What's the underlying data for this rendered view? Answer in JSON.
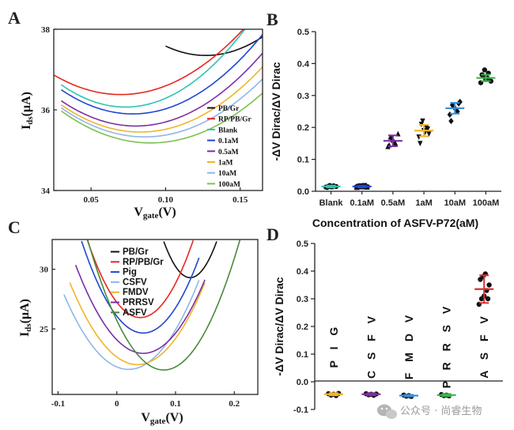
{
  "panels": {
    "a": "A",
    "b": "B",
    "c": "C",
    "d": "D"
  },
  "watermark": {
    "text": "公众号 · 尚睿生物",
    "icon": "wechat-icon"
  },
  "colors": {
    "ASFV": "#d93030"
  },
  "chart_data": [
    {
      "id": "A",
      "type": "line",
      "ylabel_main": "I",
      "ylabel_sub": "ds",
      "ylabel_rest": "(μA)",
      "xlabel_main": "V",
      "xlabel_sub": "gate",
      "xlabel_rest": "(V)",
      "xlim": [
        0.025,
        0.165
      ],
      "ylim": [
        34,
        38
      ],
      "xticks": [
        "0.05",
        "0.10",
        "0.15"
      ],
      "xtick_values": [
        0.05,
        0.1,
        0.15
      ],
      "yticks": [
        "34",
        "36",
        "38"
      ],
      "ytick_values": [
        34,
        36,
        38
      ],
      "series": [
        {
          "name": "PB/Gr",
          "color": "#111111",
          "min_x": 0.127,
          "min_y": 37.35,
          "curv": 320,
          "xrange": [
            0.1,
            0.165
          ]
        },
        {
          "name": "RP/PB/Gr",
          "color": "#e8261f",
          "min_x": 0.07,
          "min_y": 36.38,
          "curv": 240,
          "xrange": [
            0.025,
            0.165
          ]
        },
        {
          "name": "Blank",
          "color": "#2ec4b0",
          "min_x": 0.073,
          "min_y": 36.07,
          "curv": 300,
          "xrange": [
            0.03,
            0.165
          ]
        },
        {
          "name": "0.1aM",
          "color": "#2146d0",
          "min_x": 0.078,
          "min_y": 35.9,
          "curv": 260,
          "xrange": [
            0.03,
            0.165
          ]
        },
        {
          "name": "0.5aM",
          "color": "#7b2fa5",
          "min_x": 0.08,
          "min_y": 35.6,
          "curv": 250,
          "xrange": [
            0.03,
            0.165
          ]
        },
        {
          "name": "1aM",
          "color": "#f0b429",
          "min_x": 0.083,
          "min_y": 35.45,
          "curv": 240,
          "xrange": [
            0.03,
            0.165
          ]
        },
        {
          "name": "10aM",
          "color": "#8fb6e8",
          "min_x": 0.086,
          "min_y": 35.33,
          "curv": 230,
          "xrange": [
            0.03,
            0.165
          ]
        },
        {
          "name": "100aM",
          "color": "#7cc14f",
          "min_x": 0.09,
          "min_y": 35.18,
          "curv": 220,
          "xrange": [
            0.03,
            0.165
          ]
        }
      ]
    },
    {
      "id": "B",
      "type": "scatter",
      "ylabel": "-ΔV Dirac/ΔV Dirac",
      "xlabel": "Concentration of ASFV-P72(aM)",
      "ylim": [
        0,
        0.5
      ],
      "yticks": [
        "0.0",
        "0.1",
        "0.2",
        "0.3",
        "0.4",
        "0.5"
      ],
      "ytick_values": [
        0,
        0.1,
        0.2,
        0.3,
        0.4,
        0.5
      ],
      "categories": [
        "Blank",
        "0.1aM",
        "0.5aM",
        "1aM",
        "10aM",
        "100aM"
      ],
      "colors": [
        "#2ec4b0",
        "#2146d0",
        "#7b2fa5",
        "#f0b429",
        "#3a8fd8",
        "#39b54a"
      ],
      "marker_shapes": [
        "circle",
        "square",
        "triangle",
        "invtriangle",
        "diamond",
        "circle"
      ],
      "means": [
        0.015,
        0.015,
        0.158,
        0.19,
        0.26,
        0.355
      ],
      "sds": [
        0.003,
        0.003,
        0.017,
        0.018,
        0.017,
        0.01
      ],
      "points": [
        [
          0.013,
          0.016,
          0.014,
          0.017,
          0.015,
          0.012,
          0.018,
          0.014
        ],
        [
          0.012,
          0.016,
          0.014,
          0.018,
          0.013,
          0.015,
          0.017,
          0.016,
          0.014
        ],
        [
          0.14,
          0.17,
          0.16,
          0.15,
          0.18,
          0.145,
          0.165,
          0.155
        ],
        [
          0.17,
          0.21,
          0.19,
          0.2,
          0.18,
          0.15,
          0.22,
          0.185,
          0.195
        ],
        [
          0.24,
          0.27,
          0.26,
          0.25,
          0.28,
          0.22,
          0.265,
          0.255,
          0.275
        ],
        [
          0.34,
          0.36,
          0.35,
          0.37,
          0.345,
          0.365,
          0.38,
          0.355
        ]
      ]
    },
    {
      "id": "C",
      "type": "line",
      "ylabel_main": "I",
      "ylabel_sub": "ds",
      "ylabel_rest": "(μA)",
      "xlabel_main": "V",
      "xlabel_sub": "gate",
      "xlabel_rest": "(V)",
      "xlim": [
        -0.11,
        0.24
      ],
      "ylim": [
        19.5,
        32.5
      ],
      "xticks": [
        "-0.1",
        "0",
        "0.1",
        "0.2"
      ],
      "xtick_values": [
        -0.1,
        0,
        0.1,
        0.2
      ],
      "yticks": [
        "25",
        "30"
      ],
      "ytick_values": [
        25,
        30
      ],
      "series": [
        {
          "name": "PB/Gr",
          "color": "#111111",
          "min_x": 0.125,
          "min_y": 29.3,
          "curv": 1500,
          "xrange": [
            0.08,
            0.17
          ]
        },
        {
          "name": "RP/PB/Gr",
          "color": "#e8261f",
          "min_x": 0.04,
          "min_y": 25.95,
          "curv": 800,
          "xrange": [
            -0.05,
            0.13
          ]
        },
        {
          "name": "Pig",
          "color": "#2146d0",
          "min_x": 0.045,
          "min_y": 24.65,
          "curv": 700,
          "xrange": [
            -0.06,
            0.14
          ]
        },
        {
          "name": "CSFV",
          "color": "#8fb6e8",
          "min_x": 0.02,
          "min_y": 21.6,
          "curv": 520,
          "xrange": [
            -0.09,
            0.14
          ]
        },
        {
          "name": "FMDV",
          "color": "#f0b429",
          "min_x": 0.035,
          "min_y": 22.0,
          "curv": 520,
          "xrange": [
            -0.08,
            0.15
          ]
        },
        {
          "name": "PRRSV",
          "color": "#7b2fa5",
          "min_x": 0.045,
          "min_y": 22.95,
          "curv": 560,
          "xrange": [
            -0.07,
            0.15
          ]
        },
        {
          "name": "ASFV",
          "color": "#4a8a3a",
          "min_x": 0.08,
          "min_y": 21.55,
          "curv": 650,
          "xrange": [
            -0.07,
            0.21
          ]
        }
      ]
    },
    {
      "id": "D",
      "type": "scatter",
      "ylabel": "-ΔV Dirac/ΔV Dirac",
      "ylim": [
        -0.1,
        0.5
      ],
      "yticks": [
        "-0.1",
        "0.0",
        "0.1",
        "0.2",
        "0.3",
        "0.4",
        "0.5"
      ],
      "ytick_values": [
        -0.1,
        0,
        0.1,
        0.2,
        0.3,
        0.4,
        0.5
      ],
      "categories": [
        "P I G",
        "C S F V",
        "F M D V",
        "P R R S V",
        "A S F V"
      ],
      "colors": [
        "#f0b429",
        "#7b2fa5",
        "#3a8fd8",
        "#39b54a",
        "#d93030"
      ],
      "means": [
        -0.045,
        -0.045,
        -0.05,
        -0.048,
        0.335
      ],
      "sds": [
        0.004,
        0.004,
        0.003,
        0.004,
        0.05
      ],
      "points": [
        [
          -0.043,
          -0.048,
          -0.045,
          -0.05,
          -0.042
        ],
        [
          -0.043,
          -0.047,
          -0.045,
          -0.049,
          -0.044
        ],
        [
          -0.048,
          -0.052,
          -0.05,
          -0.053
        ],
        [
          -0.046,
          -0.05,
          -0.048,
          -0.051
        ],
        [
          0.28,
          0.3,
          0.31,
          0.33,
          0.35,
          0.37,
          0.38,
          0.39,
          0.3
        ]
      ]
    }
  ]
}
